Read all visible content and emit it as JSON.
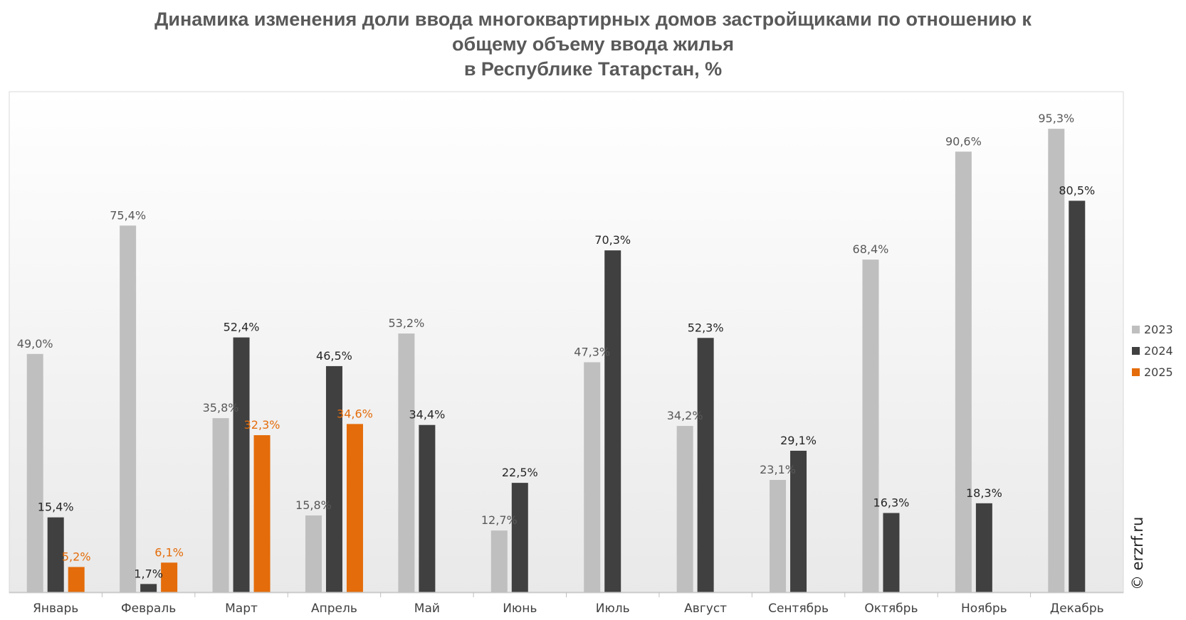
{
  "chart_data": {
    "type": "bar",
    "title_lines": [
      "Динамика изменения доли ввода многоквартирных домов застройщиками по отношению к",
      "общему объему ввода жилья",
      "в Республике Татарстан, %"
    ],
    "categories": [
      "Январь",
      "Февраль",
      "Март",
      "Апрель",
      "Май",
      "Июнь",
      "Июль",
      "Август",
      "Сентябрь",
      "Октябрь",
      "Ноябрь",
      "Декабрь"
    ],
    "series": [
      {
        "name": "2023",
        "color": "#bfbfbf",
        "label_color": "#595959",
        "values": [
          49.0,
          75.4,
          35.8,
          15.8,
          53.2,
          12.7,
          47.3,
          34.2,
          23.1,
          68.4,
          90.6,
          95.3
        ],
        "labels": [
          "49,0%",
          "75,4%",
          "35,8%",
          "15,8%",
          "53,2%",
          "12,7%",
          "47,3%",
          "34,2%",
          "23,1%",
          "68,4%",
          "90,6%",
          "95,3%"
        ]
      },
      {
        "name": "2024",
        "color": "#404040",
        "label_color": "#262626",
        "values": [
          15.4,
          1.7,
          52.4,
          46.5,
          34.4,
          22.5,
          70.3,
          52.3,
          29.1,
          16.3,
          18.3,
          80.5
        ],
        "labels": [
          "15,4%",
          "1,7%",
          "52,4%",
          "46,5%",
          "34,4%",
          "22,5%",
          "70,3%",
          "52,3%",
          "29,1%",
          "16,3%",
          "18,3%",
          "80,5%"
        ]
      },
      {
        "name": "2025",
        "color": "#e46c0a",
        "label_color": "#e46c0a",
        "values": [
          5.2,
          6.1,
          32.3,
          34.6,
          null,
          null,
          null,
          null,
          null,
          null,
          null,
          null
        ],
        "labels": [
          "5,2%",
          "6,1%",
          "32,3%",
          "34,6%",
          null,
          null,
          null,
          null,
          null,
          null,
          null,
          null
        ]
      }
    ],
    "ylim": [
      0,
      100
    ],
    "grid": false,
    "legend_position": "right",
    "watermark": "© erzrf.ru"
  }
}
